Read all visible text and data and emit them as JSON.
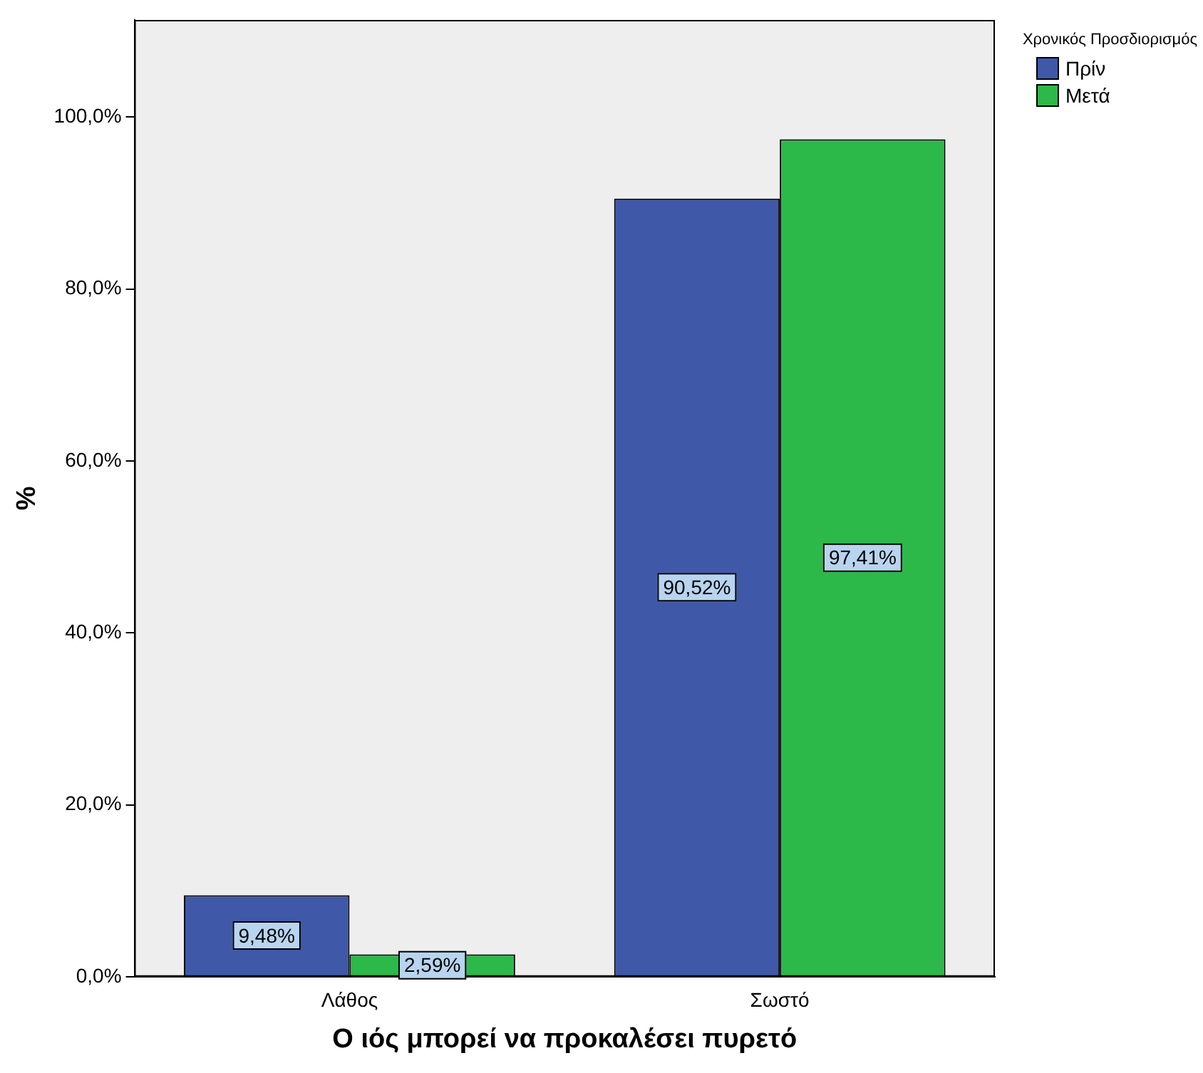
{
  "chart_data": {
    "type": "bar",
    "xlabel": "Ο ιός μπορεί να προκαλέσει πυρετό",
    "ylabel": "%",
    "legend_title": "Χρονικός Προσδιορισμός",
    "legend": "top right",
    "categories": [
      "Λάθος",
      "Σωστό"
    ],
    "series": [
      {
        "name": "Πρίν",
        "color": "#3f58a8",
        "values": [
          9.48,
          90.52
        ],
        "value_labels": [
          "9,48%",
          "90,52%"
        ]
      },
      {
        "name": "Μετά",
        "color": "#2db84a",
        "values": [
          2.59,
          97.41
        ],
        "value_labels": [
          "2,59%",
          "97,41%"
        ]
      }
    ],
    "ylim": [
      0,
      111.3
    ],
    "yticks": [
      {
        "value": 0,
        "label": "0,0%"
      },
      {
        "value": 20,
        "label": "20,0%"
      },
      {
        "value": 40,
        "label": "40,0%"
      },
      {
        "value": 60,
        "label": "60,0%"
      },
      {
        "value": 80,
        "label": "80,0%"
      },
      {
        "value": 100,
        "label": "100,0%"
      }
    ],
    "grid": false
  }
}
